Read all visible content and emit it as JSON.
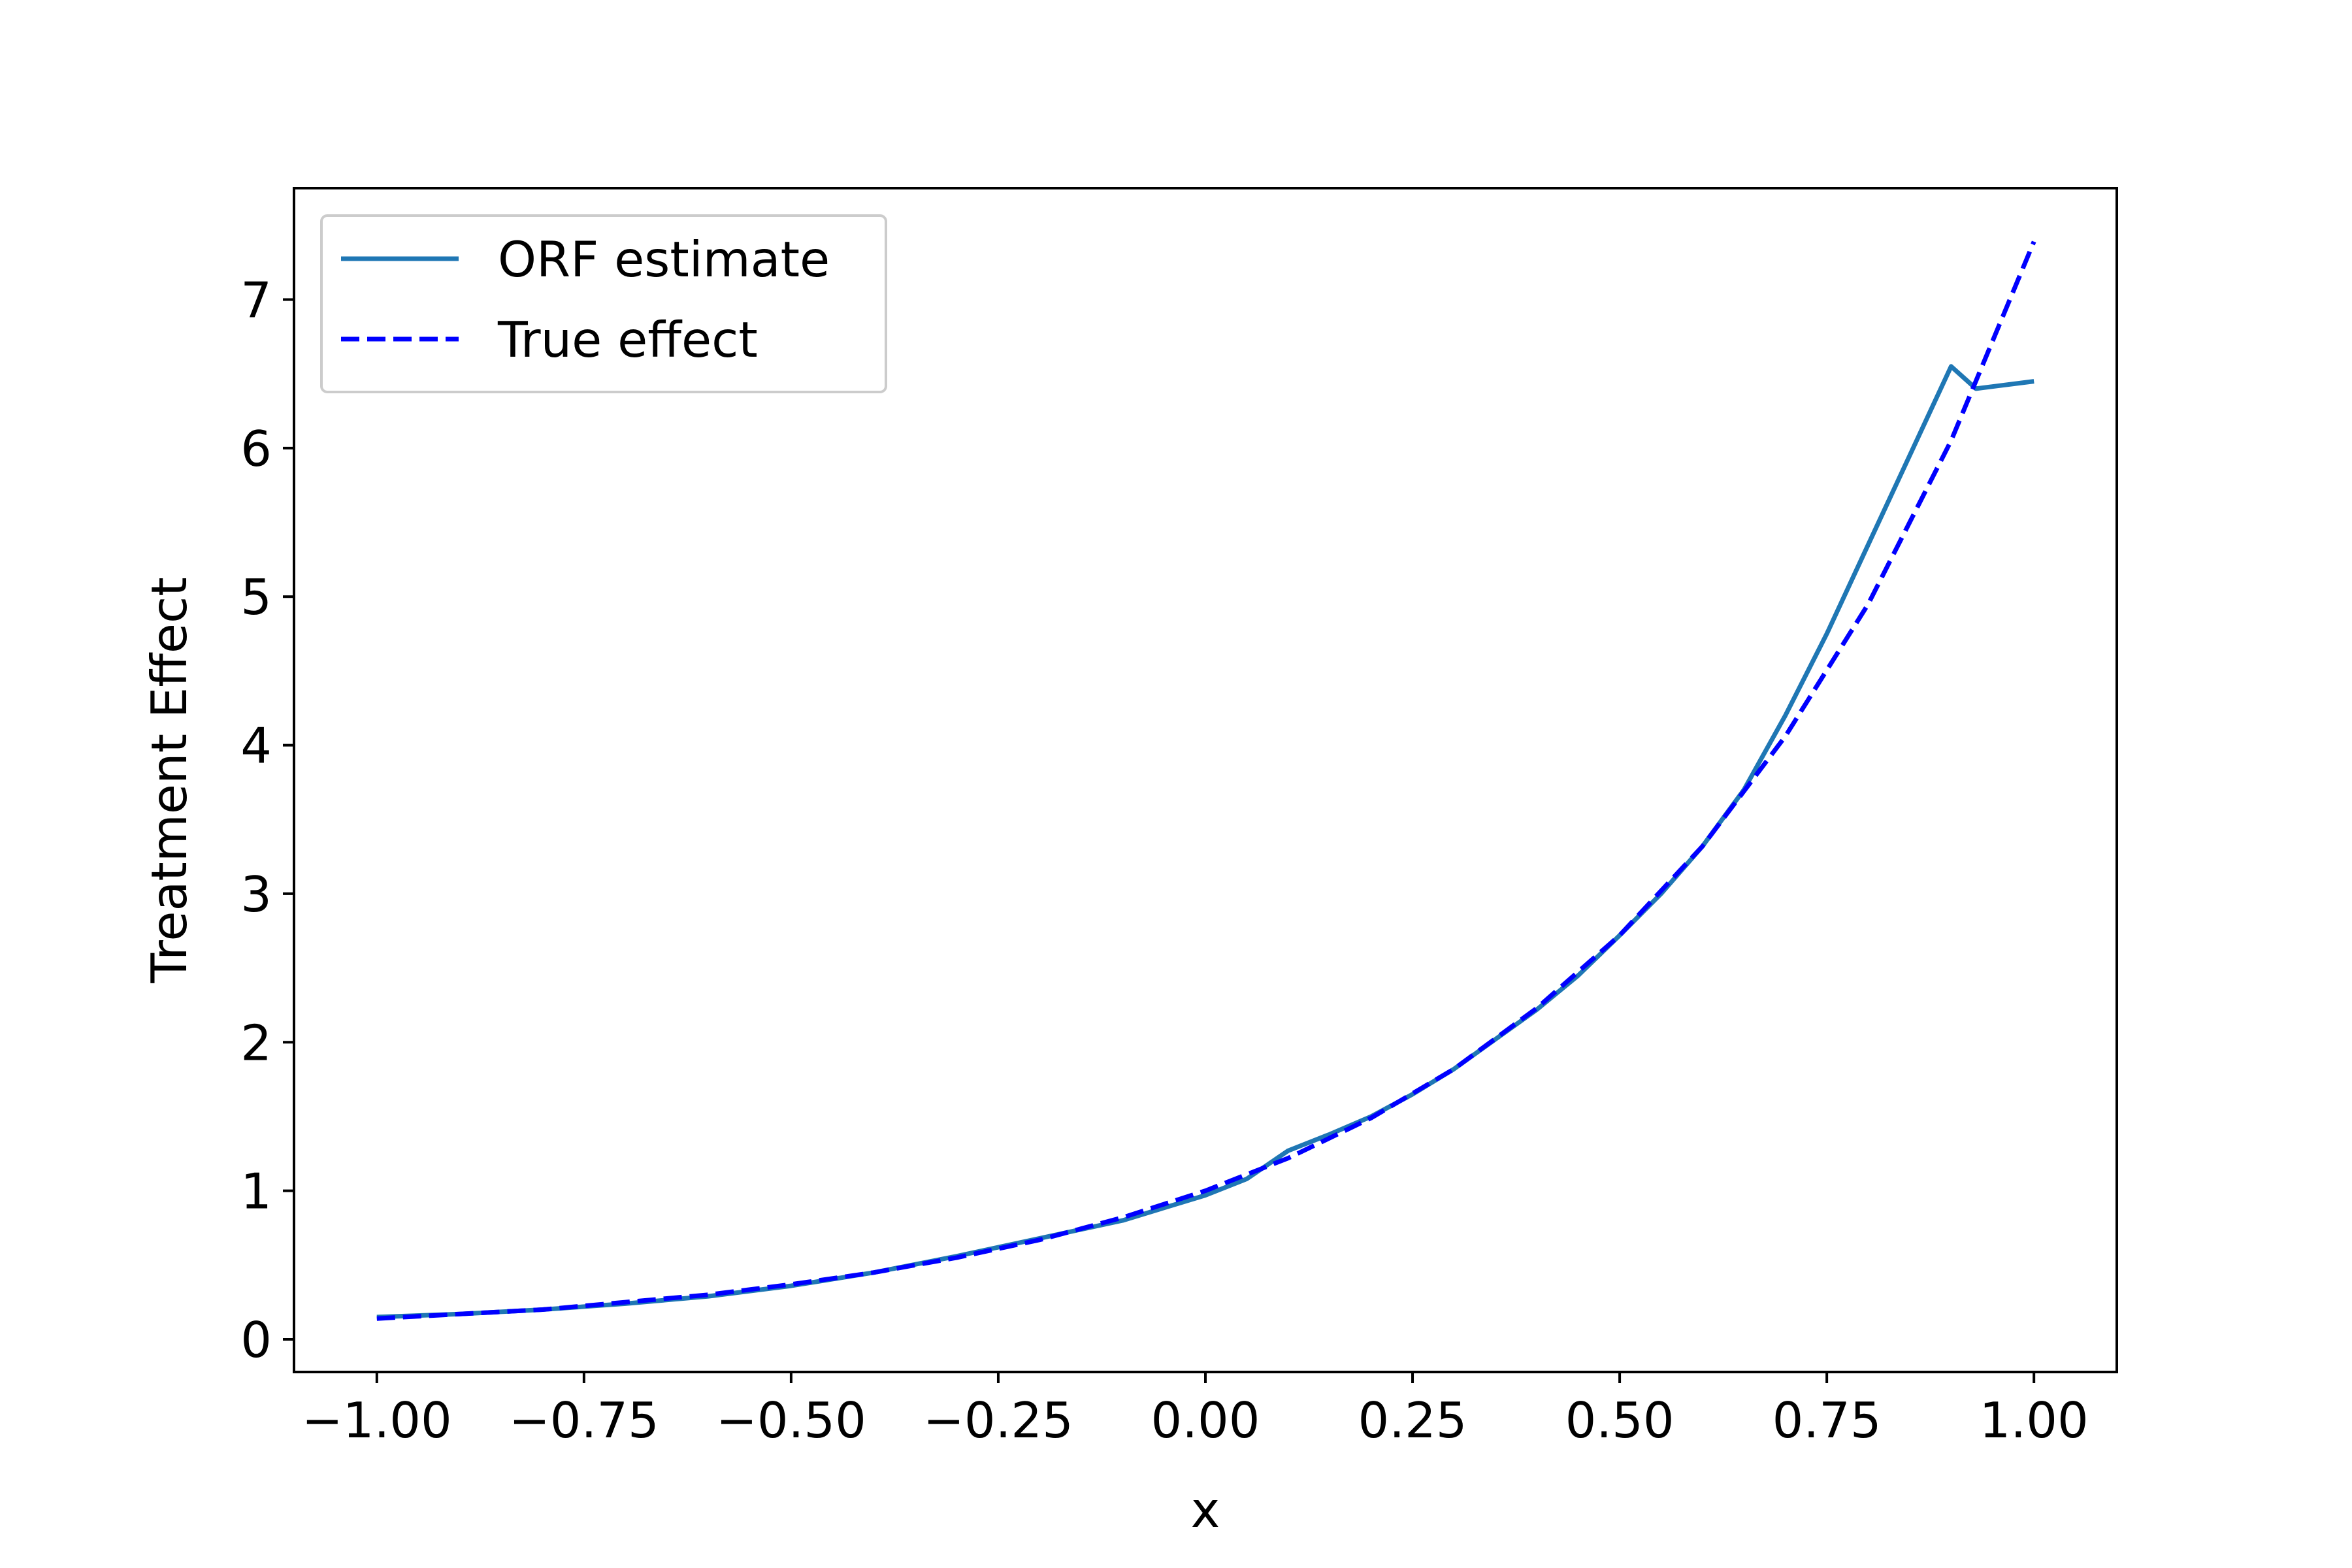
{
  "chart_data": {
    "type": "line",
    "xlabel": "x",
    "ylabel": "Treatment Effect",
    "xlim": [
      -1.1,
      1.1
    ],
    "ylim": [
      -0.22,
      7.75
    ],
    "xticks": [
      {
        "value": -1.0,
        "label": "−1.00"
      },
      {
        "value": -0.75,
        "label": "−0.75"
      },
      {
        "value": -0.5,
        "label": "−0.50"
      },
      {
        "value": -0.25,
        "label": "−0.25"
      },
      {
        "value": 0.0,
        "label": "0.00"
      },
      {
        "value": 0.25,
        "label": "0.25"
      },
      {
        "value": 0.5,
        "label": "0.50"
      },
      {
        "value": 0.75,
        "label": "0.75"
      },
      {
        "value": 1.0,
        "label": "1.00"
      }
    ],
    "yticks": [
      {
        "value": 0,
        "label": "0"
      },
      {
        "value": 1,
        "label": "1"
      },
      {
        "value": 2,
        "label": "2"
      },
      {
        "value": 3,
        "label": "3"
      },
      {
        "value": 4,
        "label": "4"
      },
      {
        "value": 5,
        "label": "5"
      },
      {
        "value": 6,
        "label": "6"
      },
      {
        "value": 7,
        "label": "7"
      }
    ],
    "grid": false,
    "legend_position": "upper-left",
    "series": [
      {
        "name": "ORF estimate",
        "color": "#1f77b4",
        "style": "solid",
        "x": [
          -1.0,
          -0.9,
          -0.8,
          -0.7,
          -0.6,
          -0.5,
          -0.4,
          -0.3,
          -0.2,
          -0.1,
          0.0,
          0.05,
          0.1,
          0.15,
          0.2,
          0.25,
          0.3,
          0.35,
          0.4,
          0.45,
          0.5,
          0.55,
          0.6,
          0.65,
          0.7,
          0.75,
          0.8,
          0.85,
          0.9,
          0.93,
          1.0
        ],
        "y": [
          0.15,
          0.17,
          0.2,
          0.24,
          0.29,
          0.36,
          0.45,
          0.56,
          0.68,
          0.8,
          0.97,
          1.08,
          1.27,
          1.38,
          1.5,
          1.65,
          1.82,
          2.02,
          2.22,
          2.45,
          2.72,
          3.0,
          3.32,
          3.7,
          4.2,
          4.75,
          5.35,
          5.95,
          6.55,
          6.4,
          6.45
        ]
      },
      {
        "name": "True effect",
        "color": "#0000ff",
        "style": "dashed",
        "x": [
          -1.0,
          -0.9,
          -0.8,
          -0.7,
          -0.6,
          -0.5,
          -0.4,
          -0.3,
          -0.2,
          -0.1,
          0.0,
          0.1,
          0.2,
          0.3,
          0.4,
          0.5,
          0.6,
          0.7,
          0.8,
          0.9,
          1.0
        ],
        "y": [
          0.14,
          0.17,
          0.2,
          0.25,
          0.3,
          0.37,
          0.45,
          0.55,
          0.67,
          0.82,
          1.0,
          1.22,
          1.49,
          1.82,
          2.23,
          2.72,
          3.32,
          4.06,
          4.95,
          6.05,
          7.39
        ]
      }
    ]
  }
}
